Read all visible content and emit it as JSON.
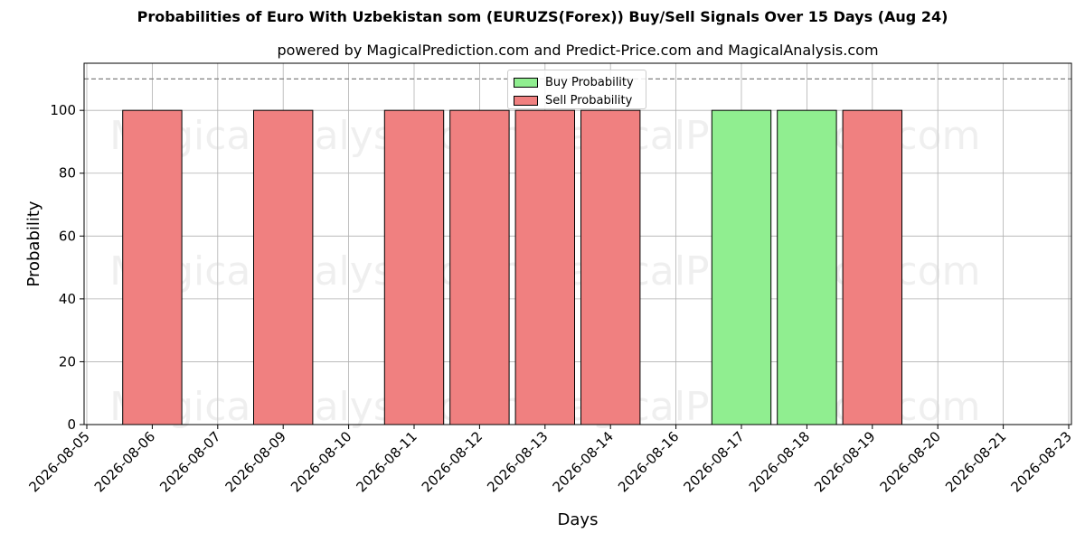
{
  "chart_data": {
    "type": "bar",
    "title": "Probabilities of Euro With Uzbekistan som (EURUZS(Forex)) Buy/Sell Signals Over 15 Days (Aug 24)",
    "subtitle": "powered by MagicalPrediction.com and Predict-Price.com and MagicalAnalysis.com",
    "xlabel": "Days",
    "ylabel": "Probability",
    "ylim": [
      0,
      115
    ],
    "yticks": [
      0,
      20,
      40,
      60,
      80,
      100
    ],
    "threshold_line": 110,
    "grid": true,
    "legend_position": "top-center",
    "categories": [
      "2026-08-05",
      "2026-08-06",
      "2026-08-07",
      "2026-08-09",
      "2026-08-10",
      "2026-08-11",
      "2026-08-12",
      "2026-08-13",
      "2026-08-14",
      "2026-08-16",
      "2026-08-17",
      "2026-08-18",
      "2026-08-19",
      "2026-08-20",
      "2026-08-21",
      "2026-08-23"
    ],
    "series": [
      {
        "name": "Buy Probability",
        "color": "#90ee90",
        "values": [
          0,
          0,
          0,
          0,
          0,
          0,
          0,
          0,
          0,
          0,
          100,
          100,
          0,
          0,
          0,
          0
        ]
      },
      {
        "name": "Sell Probability",
        "color": "#f08080",
        "values": [
          0,
          100,
          0,
          100,
          0,
          100,
          100,
          100,
          100,
          0,
          0,
          0,
          100,
          0,
          0,
          0
        ]
      }
    ],
    "watermarks": [
      "MagicalAnalysis.com",
      "MagicalPrediction.com",
      "MagicalAnalysis.com",
      "MagicalPrediction.com",
      "MagicalAnalysis.com",
      "MagicalPrediction.com"
    ]
  }
}
